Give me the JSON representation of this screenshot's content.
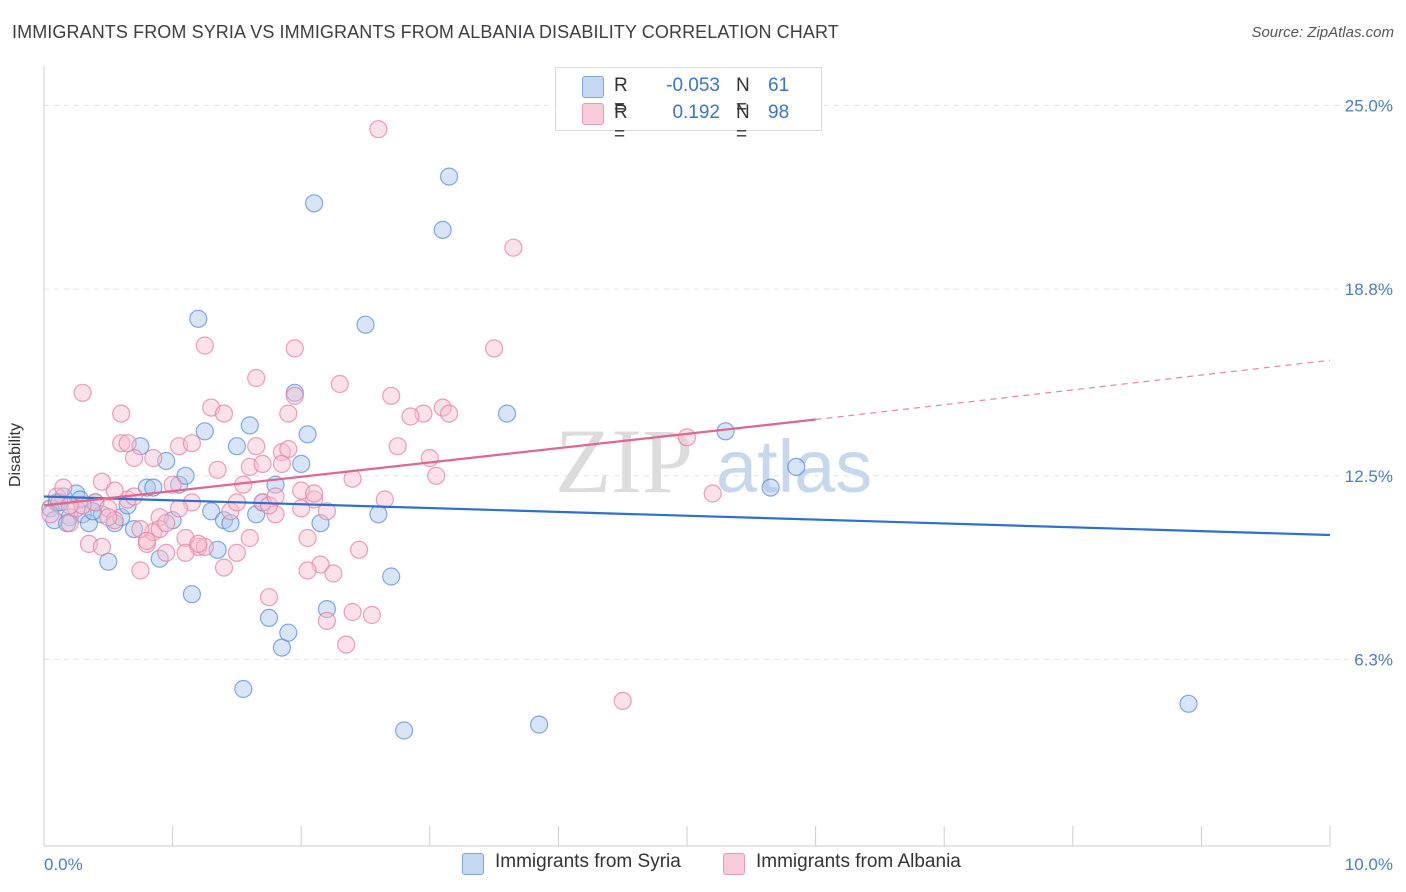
{
  "chart_data": {
    "type": "scatter",
    "title": "IMMIGRANTS FROM SYRIA VS IMMIGRANTS FROM ALBANIA DISABILITY CORRELATION CHART",
    "source": "Source: ZipAtlas.com",
    "xlabel": "",
    "ylabel": "Disability",
    "xlim": [
      0,
      10
    ],
    "ylim": [
      0,
      26.2
    ],
    "x_tick_labels": [
      "0.0%",
      "10.0%"
    ],
    "y_ticks": [
      6.3,
      12.5,
      18.8,
      25.0
    ],
    "y_tick_labels": [
      "6.3%",
      "12.5%",
      "18.8%",
      "25.0%"
    ],
    "watermark": {
      "zip": "ZIP",
      "atlas": "atlas"
    },
    "legend": {
      "entries": [
        {
          "r_label": "R =",
          "r_value": "-0.053",
          "n_label": "N =",
          "n_value": "61"
        },
        {
          "r_label": "R =",
          "r_value": "0.192",
          "n_label": "N =",
          "n_value": "98"
        }
      ]
    },
    "series": [
      {
        "name": "Immigrants from Syria",
        "color": "#5a8fd6",
        "fill": "#a9c5ee",
        "trend": {
          "x0": 0.0,
          "y0": 11.8,
          "x1": 10.0,
          "y1": 10.5,
          "dash_from": null
        },
        "points": [
          [
            0.05,
            11.4
          ],
          [
            0.1,
            11.6
          ],
          [
            0.15,
            11.8
          ],
          [
            0.2,
            11.1
          ],
          [
            0.25,
            11.9
          ],
          [
            0.3,
            11.2
          ],
          [
            0.35,
            10.9
          ],
          [
            0.4,
            11.6
          ],
          [
            0.45,
            11.2
          ],
          [
            0.5,
            9.6
          ],
          [
            0.55,
            10.9
          ],
          [
            0.6,
            11.1
          ],
          [
            0.65,
            11.5
          ],
          [
            0.7,
            10.7
          ],
          [
            0.75,
            13.5
          ],
          [
            0.8,
            12.1
          ],
          [
            0.85,
            12.1
          ],
          [
            0.9,
            9.7
          ],
          [
            0.95,
            13.0
          ],
          [
            1.0,
            11.0
          ],
          [
            1.05,
            12.2
          ],
          [
            1.1,
            12.5
          ],
          [
            1.15,
            8.5
          ],
          [
            1.2,
            17.8
          ],
          [
            1.25,
            14.0
          ],
          [
            1.3,
            11.3
          ],
          [
            1.35,
            10.0
          ],
          [
            1.4,
            11.0
          ],
          [
            1.45,
            10.9
          ],
          [
            1.5,
            13.5
          ],
          [
            1.55,
            5.3
          ],
          [
            1.6,
            14.2
          ],
          [
            1.65,
            11.2
          ],
          [
            1.7,
            11.6
          ],
          [
            1.75,
            7.7
          ],
          [
            1.8,
            12.2
          ],
          [
            1.85,
            6.7
          ],
          [
            1.9,
            7.2
          ],
          [
            1.95,
            15.3
          ],
          [
            2.0,
            12.9
          ],
          [
            2.05,
            13.9
          ],
          [
            2.1,
            21.7
          ],
          [
            2.15,
            10.9
          ],
          [
            2.2,
            8.0
          ],
          [
            2.5,
            17.6
          ],
          [
            2.6,
            11.2
          ],
          [
            2.7,
            9.1
          ],
          [
            2.8,
            3.9
          ],
          [
            3.1,
            20.8
          ],
          [
            3.15,
            22.6
          ],
          [
            3.6,
            14.6
          ],
          [
            3.85,
            4.1
          ],
          [
            5.3,
            14.0
          ],
          [
            5.65,
            12.1
          ],
          [
            5.85,
            12.8
          ],
          [
            8.9,
            4.8
          ],
          [
            0.08,
            11.0
          ],
          [
            0.18,
            10.9
          ],
          [
            0.28,
            11.7
          ],
          [
            0.38,
            11.3
          ],
          [
            0.12,
            11.6
          ]
        ]
      },
      {
        "name": "Immigrants from Albania",
        "color": "#e57fa0",
        "fill": "#f7bfd1",
        "trend": {
          "x0": 0.0,
          "y0": 11.5,
          "x1": 6.0,
          "y1": 14.4,
          "dash_from": 6.0,
          "dash_x1": 10.0,
          "dash_y1": 16.4
        },
        "points": [
          [
            0.05,
            11.2
          ],
          [
            0.1,
            11.8
          ],
          [
            0.15,
            12.1
          ],
          [
            0.2,
            10.9
          ],
          [
            0.25,
            11.4
          ],
          [
            0.3,
            15.3
          ],
          [
            0.35,
            10.2
          ],
          [
            0.4,
            11.6
          ],
          [
            0.45,
            12.3
          ],
          [
            0.5,
            11.4
          ],
          [
            0.55,
            11.0
          ],
          [
            0.6,
            13.6
          ],
          [
            0.65,
            11.7
          ],
          [
            0.7,
            13.1
          ],
          [
            0.75,
            9.3
          ],
          [
            0.8,
            10.2
          ],
          [
            0.85,
            10.6
          ],
          [
            0.9,
            11.1
          ],
          [
            0.95,
            9.9
          ],
          [
            1.0,
            12.2
          ],
          [
            1.05,
            13.5
          ],
          [
            1.1,
            10.4
          ],
          [
            1.15,
            11.6
          ],
          [
            1.2,
            10.1
          ],
          [
            1.25,
            10.1
          ],
          [
            1.3,
            14.8
          ],
          [
            1.35,
            12.7
          ],
          [
            1.4,
            9.4
          ],
          [
            1.45,
            11.3
          ],
          [
            1.5,
            11.6
          ],
          [
            1.55,
            12.2
          ],
          [
            1.6,
            12.8
          ],
          [
            1.65,
            13.5
          ],
          [
            1.7,
            11.6
          ],
          [
            1.75,
            8.4
          ],
          [
            1.8,
            11.2
          ],
          [
            1.85,
            13.3
          ],
          [
            1.9,
            14.6
          ],
          [
            1.95,
            15.2
          ],
          [
            2.0,
            12.0
          ],
          [
            2.05,
            10.4
          ],
          [
            2.1,
            11.7
          ],
          [
            2.15,
            9.5
          ],
          [
            2.2,
            7.6
          ],
          [
            2.25,
            9.2
          ],
          [
            2.3,
            15.6
          ],
          [
            2.35,
            6.8
          ],
          [
            2.4,
            7.9
          ],
          [
            2.45,
            10.0
          ],
          [
            2.6,
            24.2
          ],
          [
            2.7,
            15.2
          ],
          [
            2.75,
            13.5
          ],
          [
            2.95,
            14.6
          ],
          [
            3.0,
            13.1
          ],
          [
            3.1,
            14.8
          ],
          [
            3.15,
            14.6
          ],
          [
            3.5,
            16.8
          ],
          [
            3.65,
            20.2
          ],
          [
            4.5,
            4.9
          ],
          [
            5.0,
            13.8
          ],
          [
            5.2,
            11.9
          ],
          [
            1.25,
            16.9
          ],
          [
            0.6,
            14.6
          ],
          [
            0.65,
            13.6
          ],
          [
            0.85,
            13.1
          ],
          [
            1.15,
            13.6
          ],
          [
            1.5,
            9.9
          ],
          [
            1.75,
            11.5
          ],
          [
            0.3,
            11.5
          ],
          [
            0.45,
            10.1
          ],
          [
            0.5,
            11.1
          ],
          [
            0.55,
            12.0
          ],
          [
            0.7,
            11.8
          ],
          [
            0.75,
            10.7
          ],
          [
            0.8,
            10.3
          ],
          [
            0.9,
            10.7
          ],
          [
            0.95,
            10.9
          ],
          [
            1.05,
            11.4
          ],
          [
            1.1,
            9.9
          ],
          [
            1.2,
            10.2
          ],
          [
            1.6,
            10.4
          ],
          [
            1.65,
            15.8
          ],
          [
            1.7,
            12.9
          ],
          [
            1.8,
            11.8
          ],
          [
            1.85,
            12.9
          ],
          [
            1.9,
            13.4
          ],
          [
            1.95,
            16.8
          ],
          [
            2.0,
            11.4
          ],
          [
            2.05,
            9.3
          ],
          [
            2.1,
            11.9
          ],
          [
            2.2,
            11.3
          ],
          [
            2.4,
            12.4
          ],
          [
            2.55,
            7.8
          ],
          [
            2.65,
            11.7
          ],
          [
            3.05,
            12.5
          ],
          [
            2.85,
            14.5
          ],
          [
            1.4,
            14.6
          ],
          [
            0.2,
            11.5
          ]
        ]
      }
    ]
  },
  "bottom_legend": [
    "Immigrants from Syria",
    "Immigrants from Albania"
  ]
}
